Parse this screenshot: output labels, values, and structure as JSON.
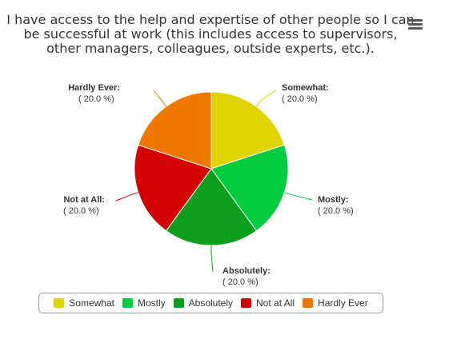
{
  "title": {
    "line1": "I have access to the help and expertise of other people so I can",
    "line2": "be successful at work (this includes access to supervisors,",
    "line3": "other managers, colleagues, outside experts, etc.)."
  },
  "menu": {
    "icon": "hamburger-menu-icon"
  },
  "chart_data": {
    "type": "pie",
    "title": "I have access to the help and expertise of other people so I can be successful at work (this includes access to supervisors, other managers, colleagues, outside experts, etc.).",
    "legend_position": "bottom",
    "slices": [
      {
        "label": "Somewhat",
        "value": 20.0,
        "value_label": "( 20.0 %)",
        "color": "#e0d400"
      },
      {
        "label": "Mostly",
        "value": 20.0,
        "value_label": "( 20.0 %)",
        "color": "#00cc3d"
      },
      {
        "label": "Absolutely",
        "value": 20.0,
        "value_label": "( 20.0 %)",
        "color": "#0c9e1c"
      },
      {
        "label": "Not at All",
        "value": 20.0,
        "value_label": "( 20.0 %)",
        "color": "#d40000"
      },
      {
        "label": "Hardly Ever",
        "value": 20.0,
        "value_label": "( 20.0 %)",
        "color": "#ef7700"
      }
    ]
  }
}
